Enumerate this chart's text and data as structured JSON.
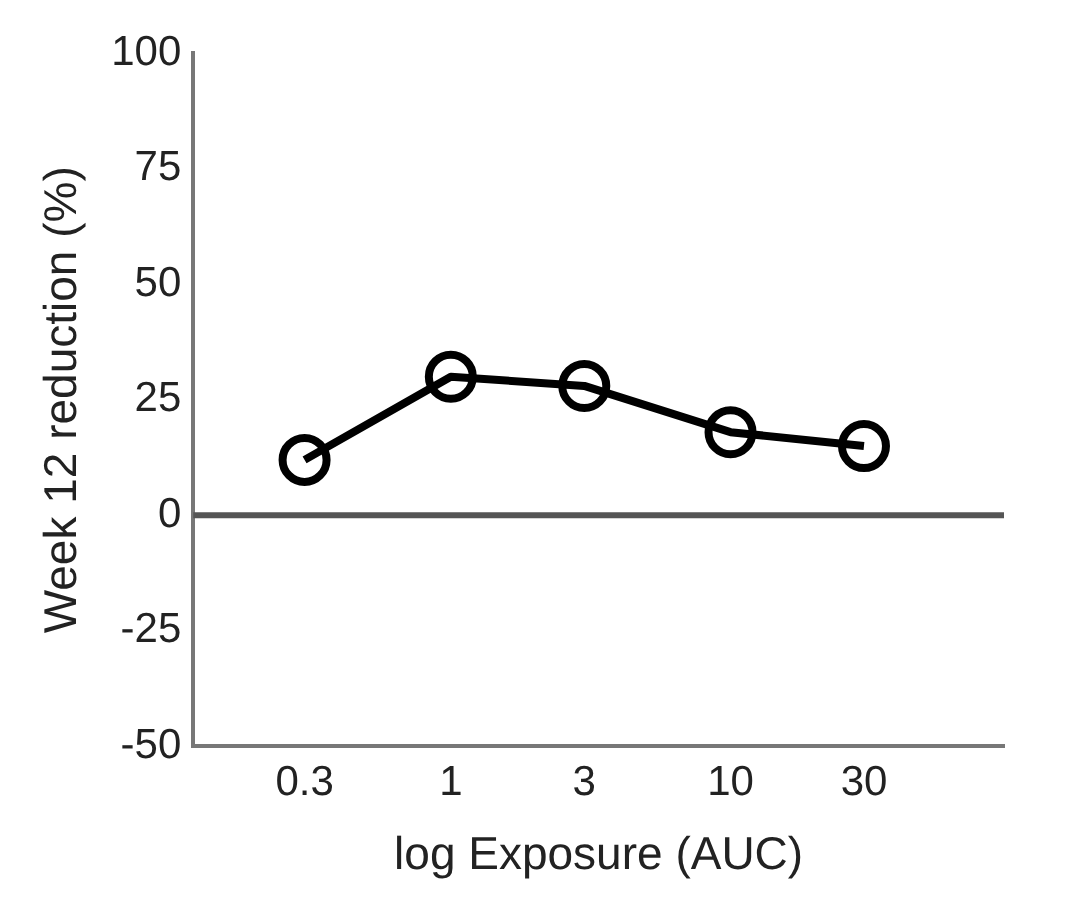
{
  "chart_data": {
    "type": "line",
    "xlabel": "log Exposure (AUC)",
    "ylabel": "Week 12 reduction (%)",
    "x": [
      0.3,
      1,
      3,
      10,
      30
    ],
    "series": [
      {
        "color": "#000000",
        "values": [
          12,
          30,
          28,
          18,
          15
        ]
      }
    ],
    "log": "x",
    "xlim": [
      0.12,
      95
    ],
    "xticks": [
      0.3,
      1,
      3,
      10,
      30
    ],
    "ylim": [
      -50,
      100
    ],
    "yticks": [
      -50,
      -25,
      0,
      25,
      50,
      75,
      100
    ],
    "ref_lines": [
      {
        "axis": "y",
        "value": 0,
        "color": "#555555"
      }
    ],
    "marker": "circle",
    "line_style": "solid",
    "grid": false,
    "legend": false
  }
}
